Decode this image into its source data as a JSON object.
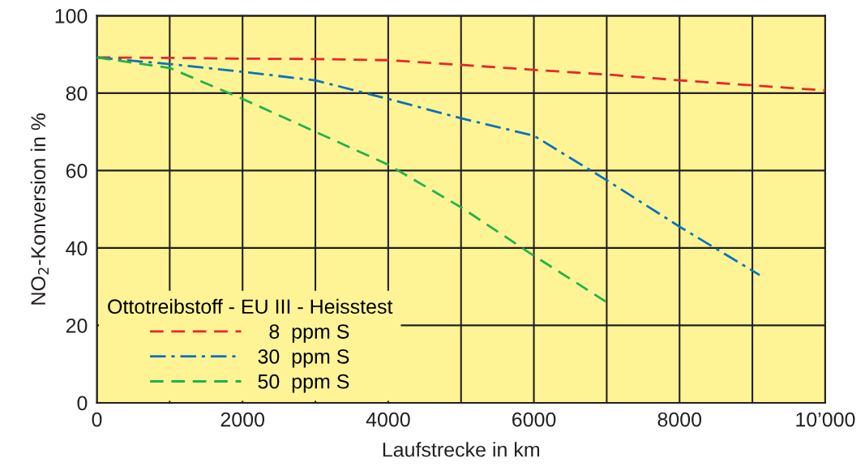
{
  "chart_data": {
    "type": "line",
    "xlabel": "Laufstrecke in km",
    "ylabel": "NO$_{2}$-Konversion in %",
    "legend_title": "Ottotreibstoff - EU III - Heisstest",
    "legend": "bottom left",
    "grid": true,
    "xlim": [
      0,
      10000
    ],
    "ylim": [
      0,
      100
    ],
    "xticks": [
      0,
      {
        "value": 1000,
        "label": null
      },
      2000,
      {
        "value": 3000,
        "label": null
      },
      4000,
      {
        "value": 5000,
        "label": null
      },
      6000,
      {
        "value": 7000,
        "label": null
      },
      8000,
      {
        "value": 9000,
        "label": null
      },
      {
        "value": 10000,
        "label": "10’000"
      }
    ],
    "yticks": [
      0,
      20,
      40,
      60,
      80,
      100
    ],
    "series": [
      {
        "name": "  8  ppm S",
        "color": "#e8262b",
        "line_style": "dashed",
        "x": [
          0,
          1000,
          2000,
          3000,
          4000,
          5000,
          6000,
          7000,
          8000,
          9000,
          10000
        ],
        "values": [
          89.2,
          89.1,
          88.9,
          88.8,
          88.5,
          87.3,
          86,
          84.8,
          83.3,
          82,
          80.7
        ]
      },
      {
        "name": "30  ppm S",
        "color": "#0a72bc",
        "line_style": "dashdot",
        "x": [
          0,
          1000,
          2000,
          3000,
          4000,
          5000,
          6000,
          7000,
          8000,
          9100
        ],
        "values": [
          89.2,
          87.5,
          85.5,
          83.3,
          78.5,
          73.5,
          69,
          57.5,
          45.5,
          33
        ]
      },
      {
        "name": "50  ppm S",
        "color": "#21b24b",
        "line_style": "dashed",
        "x": [
          0,
          1000,
          2000,
          3000,
          4000,
          5000,
          6000,
          7000
        ],
        "values": [
          89.2,
          86.5,
          78.5,
          70,
          61.5,
          50.5,
          38,
          26
        ]
      }
    ]
  }
}
